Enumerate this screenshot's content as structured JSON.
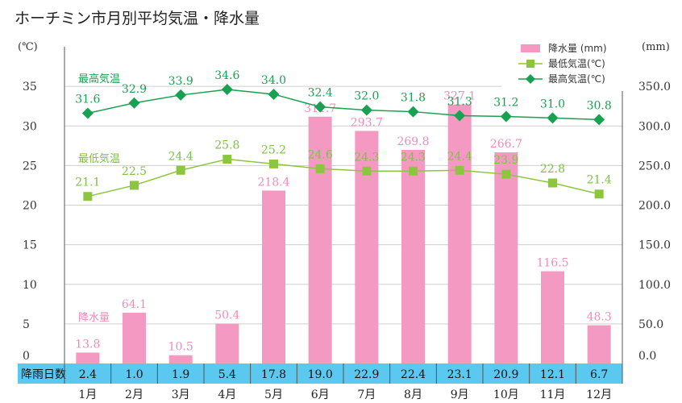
{
  "chart_data": {
    "type": "bar+line",
    "title": "ホーチミン市月別平均気温・降水量",
    "left_unit": "(℃)",
    "right_unit": "(mm)",
    "categories": [
      "1月",
      "2月",
      "3月",
      "4月",
      "5月",
      "6月",
      "7月",
      "8月",
      "9月",
      "10月",
      "11月",
      "12月"
    ],
    "left_ticks": [
      "35",
      "30",
      "25",
      "20",
      "15",
      "10",
      "5",
      "0"
    ],
    "right_ticks": [
      "350.0",
      "300.0",
      "250.0",
      "200.0",
      "150.0",
      "100.0",
      "50.0",
      "0.0"
    ],
    "y_left_range": [
      0,
      40
    ],
    "y_right_range": [
      0,
      400
    ],
    "rainfall": {
      "name": "降水量 (mm)",
      "inline_name": "降水量",
      "values": [
        13.8,
        64.1,
        10.5,
        50.4,
        218.4,
        311.7,
        293.7,
        269.8,
        327.1,
        266.7,
        116.5,
        48.3
      ],
      "labels": [
        "13.8",
        "64.1",
        "10.5",
        "50.4",
        "218.4",
        "311.7",
        "293.7",
        "269.8",
        "327.1",
        "266.7",
        "116.5",
        "48.3"
      ],
      "color": "#f49ac2"
    },
    "min_temp": {
      "name": "最低気温(℃)",
      "inline_name": "最低気温",
      "values": [
        21.1,
        22.5,
        24.4,
        25.8,
        25.2,
        24.6,
        24.3,
        24.3,
        24.4,
        23.9,
        22.8,
        21.4
      ],
      "labels": [
        "21.1",
        "22.5",
        "24.4",
        "25.8",
        "25.2",
        "24.6",
        "24.3",
        "24.3",
        "24.4",
        "23.9",
        "22.8",
        "21.4"
      ],
      "color": "#8cc63f"
    },
    "max_temp": {
      "name": "最高気温(℃)",
      "inline_name": "最高気温",
      "values": [
        31.6,
        32.9,
        33.9,
        34.6,
        34.0,
        32.4,
        32.0,
        31.8,
        31.3,
        31.2,
        31.0,
        30.8
      ],
      "labels": [
        "31.6",
        "32.9",
        "33.9",
        "34.6",
        "34.0",
        "32.4",
        "32.0",
        "31.8",
        "31.3",
        "31.2",
        "31.0",
        "30.8"
      ],
      "color": "#18a150"
    },
    "rainy_days": {
      "label": "降雨日数",
      "values": [
        "2.4",
        "1.0",
        "1.9",
        "5.4",
        "17.8",
        "19.0",
        "22.9",
        "22.4",
        "23.1",
        "20.9",
        "12.1",
        "6.7"
      ],
      "band_color": "#5bc8f0"
    }
  }
}
